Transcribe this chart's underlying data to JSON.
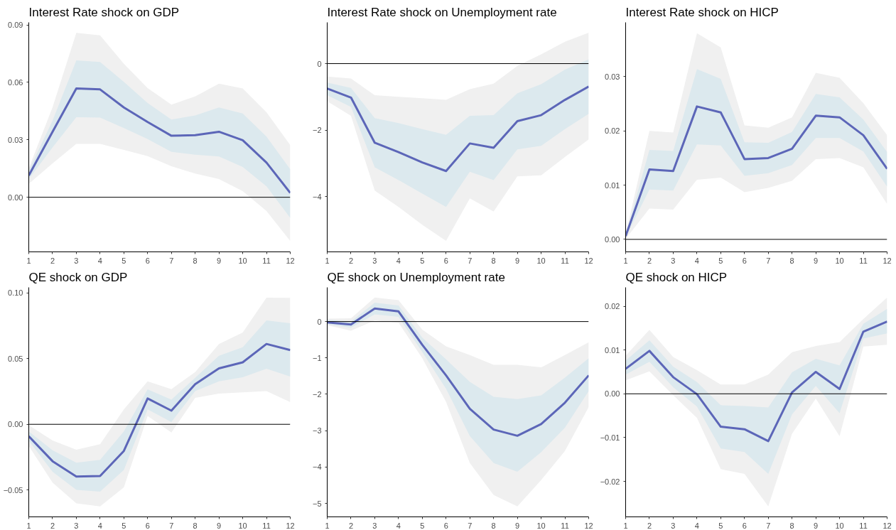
{
  "chart_data": [
    {
      "type": "line",
      "title": "Interest Rate shock on GDP",
      "x": [
        1,
        2,
        3,
        4,
        5,
        6,
        7,
        8,
        9,
        10,
        11,
        12
      ],
      "xlim": [
        1,
        12
      ],
      "xticks": [
        1,
        2,
        3,
        4,
        5,
        6,
        7,
        8,
        9,
        10,
        11,
        12
      ],
      "ylim": [
        -0.0285,
        0.0913
      ],
      "yticks": [
        {
          "value": 0,
          "label": "0.00"
        },
        {
          "value": 0.03,
          "label": "0.03"
        },
        {
          "value": 0.06,
          "label": "0.06"
        },
        {
          "value": 0.09,
          "label": "0.09"
        }
      ],
      "ref_lines": [
        {
          "axis": "y",
          "value": 0,
          "color": "#000000"
        }
      ],
      "series": [
        {
          "color": "#f0f0f0",
          "values": [
            null,
            null,
            null,
            null,
            null,
            null,
            null,
            null,
            null,
            null,
            null,
            null
          ],
          "upper": [
            0.0152,
            0.047,
            0.0858,
            0.0845,
            0.0697,
            0.057,
            0.0484,
            0.0526,
            0.0593,
            0.0568,
            0.0444,
            0.0272
          ],
          "lower": [
            0.007,
            0.0177,
            0.0279,
            0.0279,
            0.0247,
            0.0215,
            0.0162,
            0.0124,
            0.0095,
            0.0032,
            -0.0072,
            -0.0228
          ]
        },
        {
          "color": "#dce9ee",
          "values": [
            null,
            null,
            null,
            null,
            null,
            null,
            null,
            null,
            null,
            null,
            null,
            null
          ],
          "upper": [
            0.014,
            0.04,
            0.0715,
            0.0706,
            0.0602,
            0.0492,
            0.0406,
            0.0427,
            0.0469,
            0.0437,
            0.0317,
            0.0146
          ],
          "lower": [
            0.0095,
            0.026,
            0.0418,
            0.0416,
            0.0361,
            0.0304,
            0.0237,
            0.0222,
            0.0213,
            0.0158,
            0.0057,
            -0.0108
          ]
        },
        {
          "color": "#5c66b8",
          "values": [
            0.0114,
            0.0342,
            0.0568,
            0.0563,
            0.0469,
            0.0393,
            0.0321,
            0.0324,
            0.0342,
            0.0298,
            0.0181,
            0.0023
          ]
        }
      ]
    },
    {
      "type": "line",
      "title": "Interest Rate shock on Unemployment rate",
      "x": [
        1,
        2,
        3,
        4,
        5,
        6,
        7,
        8,
        9,
        10,
        11,
        12
      ],
      "xlim": [
        1,
        12
      ],
      "xticks": [
        1,
        2,
        3,
        4,
        5,
        6,
        7,
        8,
        9,
        10,
        11,
        12
      ],
      "ylim": [
        -5.66,
        1.24
      ],
      "yticks": [
        {
          "value": -4,
          "label": "−4"
        },
        {
          "value": -2,
          "label": "−2"
        },
        0
      ],
      "ref_lines": [
        {
          "axis": "y",
          "value": 0,
          "color": "#000000"
        }
      ],
      "series": [
        {
          "color": "#f0f0f0",
          "values": [
            null,
            null,
            null,
            null,
            null,
            null,
            null,
            null,
            null,
            null,
            null,
            null
          ],
          "upper": [
            -0.39,
            -0.45,
            -0.95,
            -1.0,
            -1.04,
            -1.09,
            -0.77,
            -0.6,
            -0.07,
            0.28,
            0.66,
            0.93
          ],
          "lower": [
            -1.13,
            -1.57,
            -3.82,
            -4.31,
            -4.85,
            -5.33,
            -4.05,
            -4.45,
            -3.39,
            -3.36,
            -2.81,
            -2.28
          ]
        },
        {
          "color": "#dce9ee",
          "values": [
            null,
            null,
            null,
            null,
            null,
            null,
            null,
            null,
            null,
            null,
            null,
            null
          ],
          "upper": [
            -0.57,
            -0.73,
            -1.64,
            -1.79,
            -1.97,
            -2.14,
            -1.57,
            -1.55,
            -0.89,
            -0.62,
            -0.18,
            0.13
          ],
          "lower": [
            -0.95,
            -1.3,
            -3.12,
            -3.5,
            -3.91,
            -4.31,
            -3.25,
            -3.5,
            -2.58,
            -2.47,
            -1.97,
            -1.51
          ]
        },
        {
          "color": "#5c66b8",
          "values": [
            -0.75,
            -1.02,
            -2.38,
            -2.66,
            -2.97,
            -3.23,
            -2.4,
            -2.53,
            -1.73,
            -1.55,
            -1.09,
            -0.69
          ]
        }
      ]
    },
    {
      "type": "line",
      "title": "Interest Rate shock on HICP",
      "x": [
        1,
        2,
        3,
        4,
        5,
        6,
        7,
        8,
        9,
        10,
        11,
        12
      ],
      "xlim": [
        1,
        12
      ],
      "xticks": [
        1,
        2,
        3,
        4,
        5,
        6,
        7,
        8,
        9,
        10,
        11,
        12
      ],
      "ylim": [
        -0.0023,
        0.04
      ],
      "yticks": [
        {
          "value": 0,
          "label": "0.00"
        },
        {
          "value": 0.01,
          "label": "0.01"
        },
        {
          "value": 0.02,
          "label": "0.02"
        },
        {
          "value": 0.03,
          "label": "0.03"
        }
      ],
      "ref_lines": [
        {
          "axis": "y",
          "value": 0,
          "color": "#000000"
        }
      ],
      "series": [
        {
          "color": "#f0f0f0",
          "values": [
            null,
            null,
            null,
            null,
            null,
            null,
            null,
            null,
            null,
            null,
            null,
            null
          ],
          "upper": [
            0.001,
            0.02,
            0.0197,
            0.038,
            0.0354,
            0.021,
            0.0206,
            0.0225,
            0.0307,
            0.0298,
            0.0251,
            0.0192
          ],
          "lower": [
            0.0001,
            0.0057,
            0.0055,
            0.011,
            0.0114,
            0.0087,
            0.0095,
            0.0108,
            0.0148,
            0.015,
            0.0133,
            0.0065
          ]
        },
        {
          "color": "#dce9ee",
          "values": [
            null,
            null,
            null,
            null,
            null,
            null,
            null,
            null,
            null,
            null,
            null,
            null
          ],
          "upper": [
            0.0008,
            0.0165,
            0.0163,
            0.0314,
            0.0296,
            0.0179,
            0.0178,
            0.0198,
            0.0268,
            0.0262,
            0.0221,
            0.0161
          ],
          "lower": [
            0.0004,
            0.0092,
            0.009,
            0.0175,
            0.0173,
            0.0117,
            0.0122,
            0.0137,
            0.0187,
            0.0187,
            0.0162,
            0.0097
          ]
        },
        {
          "color": "#5c66b8",
          "values": [
            0.0006,
            0.0129,
            0.0126,
            0.0245,
            0.0234,
            0.0148,
            0.015,
            0.0167,
            0.0228,
            0.0225,
            0.0192,
            0.013
          ]
        }
      ]
    },
    {
      "type": "line",
      "title": "QE shock on GDP",
      "x": [
        1,
        2,
        3,
        4,
        5,
        6,
        7,
        8,
        9,
        10,
        11,
        12
      ],
      "xlim": [
        1,
        12
      ],
      "xticks": [
        1,
        2,
        3,
        4,
        5,
        6,
        7,
        8,
        9,
        10,
        11,
        12
      ],
      "ylim": [
        -0.0705,
        0.1043
      ],
      "yticks": [
        {
          "value": -0.05,
          "label": "−0.05"
        },
        {
          "value": 0,
          "label": "0.00"
        },
        {
          "value": 0.05,
          "label": "0.05"
        },
        {
          "value": 0.1,
          "label": "0.10"
        }
      ],
      "ref_lines": [
        {
          "axis": "y",
          "value": 0,
          "color": "#000000"
        }
      ],
      "series": [
        {
          "color": "#f0f0f0",
          "values": [
            null,
            null,
            null,
            null,
            null,
            null,
            null,
            null,
            null,
            null,
            null,
            null
          ],
          "upper": [
            -0.0007,
            -0.0123,
            -0.0193,
            -0.0152,
            0.0113,
            0.0327,
            0.0268,
            0.0398,
            0.0612,
            0.0699,
            0.0965,
            0.0963
          ],
          "lower": [
            -0.0165,
            -0.0444,
            -0.0602,
            -0.0625,
            -0.0481,
            0.0063,
            -0.0063,
            0.0201,
            0.0234,
            0.0243,
            0.0253,
            0.0169
          ]
        },
        {
          "color": "#dce9ee",
          "values": [
            null,
            null,
            null,
            null,
            null,
            null,
            null,
            null,
            null,
            null,
            null,
            null
          ],
          "upper": [
            -0.0054,
            -0.0197,
            -0.0292,
            -0.0271,
            -0.0054,
            0.0266,
            0.0188,
            0.0355,
            0.0522,
            0.0587,
            0.0792,
            0.077
          ],
          "lower": [
            -0.0125,
            -0.0361,
            -0.05,
            -0.0513,
            -0.0348,
            0.0113,
            0.0017,
            0.0253,
            0.0327,
            0.0359,
            0.0424,
            0.0364
          ]
        },
        {
          "color": "#5c66b8",
          "values": [
            -0.0091,
            -0.0281,
            -0.0398,
            -0.0394,
            -0.0203,
            0.0197,
            0.0104,
            0.0305,
            0.0426,
            0.0472,
            0.0612,
            0.0565
          ]
        }
      ]
    },
    {
      "type": "line",
      "title": "QE shock on Unemployment rate",
      "x": [
        1,
        2,
        3,
        4,
        5,
        6,
        7,
        8,
        9,
        10,
        11,
        12
      ],
      "xlim": [
        1,
        12
      ],
      "xticks": [
        1,
        2,
        3,
        4,
        5,
        6,
        7,
        8,
        9,
        10,
        11,
        12
      ],
      "ylim": [
        -5.37,
        0.94
      ],
      "yticks": [
        {
          "value": -5,
          "label": "−5"
        },
        {
          "value": -4,
          "label": "−4"
        },
        {
          "value": -3,
          "label": "−3"
        },
        {
          "value": -2,
          "label": "−2"
        },
        {
          "value": -1,
          "label": "−1"
        },
        0
      ],
      "ref_lines": [
        {
          "axis": "y",
          "value": 0,
          "color": "#000000"
        }
      ],
      "series": [
        {
          "color": "#f0f0f0",
          "values": [
            null,
            null,
            null,
            null,
            null,
            null,
            null,
            null,
            null,
            null,
            null,
            null
          ],
          "upper": [
            0.08,
            0.09,
            0.66,
            0.59,
            -0.22,
            -0.68,
            -0.92,
            -1.19,
            -1.19,
            -1.26,
            -0.92,
            -0.57
          ],
          "lower": [
            -0.1,
            -0.25,
            0.03,
            -0.03,
            -1.01,
            -2.21,
            -3.89,
            -4.77,
            -5.08,
            -4.36,
            -3.56,
            -2.35
          ]
        },
        {
          "color": "#dce9ee",
          "values": [
            null,
            null,
            null,
            null,
            null,
            null,
            null,
            null,
            null,
            null,
            null,
            null
          ],
          "upper": [
            0.05,
            0.0,
            0.52,
            0.44,
            -0.44,
            -1.04,
            -1.66,
            -2.07,
            -2.13,
            -2.03,
            -1.54,
            -1.01
          ],
          "lower": [
            -0.07,
            -0.17,
            0.2,
            0.13,
            -0.84,
            -1.85,
            -3.15,
            -3.89,
            -4.13,
            -3.59,
            -2.92,
            -1.91
          ]
        },
        {
          "color": "#5c66b8",
          "values": [
            -0.02,
            -0.08,
            0.36,
            0.28,
            -0.64,
            -1.48,
            -2.4,
            -2.97,
            -3.14,
            -2.82,
            -2.23,
            -1.48
          ]
        }
      ]
    },
    {
      "type": "line",
      "title": "QE shock on HICP",
      "x": [
        1,
        2,
        3,
        4,
        5,
        6,
        7,
        8,
        9,
        10,
        11,
        12
      ],
      "xlim": [
        1,
        12
      ],
      "xticks": [
        1,
        2,
        3,
        4,
        5,
        6,
        7,
        8,
        9,
        10,
        11,
        12
      ],
      "ylim": [
        -0.0281,
        0.0243
      ],
      "yticks": [
        {
          "value": -0.02,
          "label": "−0.02"
        },
        {
          "value": -0.01,
          "label": "−0.01"
        },
        {
          "value": 0,
          "label": "0.00"
        },
        {
          "value": 0.01,
          "label": "0.01"
        },
        {
          "value": 0.02,
          "label": "0.02"
        }
      ],
      "ref_lines": [
        {
          "axis": "y",
          "value": 0,
          "color": "#000000"
        }
      ],
      "series": [
        {
          "color": "#f0f0f0",
          "values": [
            null,
            null,
            null,
            null,
            null,
            null,
            null,
            null,
            null,
            null,
            null,
            null
          ],
          "upper": [
            0.0087,
            0.0146,
            0.0084,
            0.0054,
            0.0021,
            0.0021,
            0.0044,
            0.0095,
            0.0109,
            0.0118,
            0.0171,
            0.022
          ],
          "lower": [
            0.0031,
            0.0051,
            -0.0003,
            -0.0055,
            -0.0172,
            -0.0183,
            -0.0257,
            -0.0091,
            -0.0011,
            -0.0097,
            0.0108,
            0.0112
          ]
        },
        {
          "color": "#dce9ee",
          "values": [
            null,
            null,
            null,
            null,
            null,
            null,
            null,
            null,
            null,
            null,
            null,
            null
          ],
          "upper": [
            0.0076,
            0.0122,
            0.0062,
            0.0027,
            -0.0026,
            -0.0028,
            -0.0031,
            0.0049,
            0.008,
            0.0065,
            0.016,
            0.0194
          ],
          "lower": [
            0.0044,
            0.0073,
            0.0015,
            -0.0029,
            -0.0125,
            -0.0133,
            -0.0183,
            -0.0047,
            0.0018,
            -0.0044,
            0.0126,
            0.0138
          ]
        },
        {
          "color": "#5c66b8",
          "values": [
            0.0057,
            0.0098,
            0.0038,
            -0.0001,
            -0.0075,
            -0.0081,
            -0.0108,
            0.0003,
            0.005,
            0.0011,
            0.0142,
            0.0165
          ]
        }
      ]
    }
  ]
}
